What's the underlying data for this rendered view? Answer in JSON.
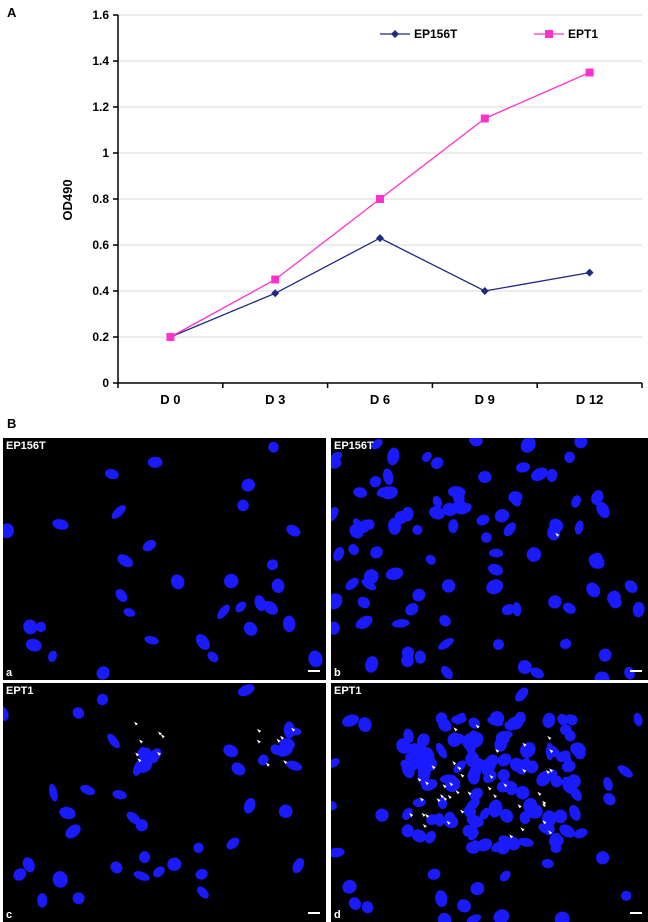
{
  "panel_a_label": "A",
  "panel_b_label": "B",
  "colors": {
    "ep156t": "#1f2a80",
    "ept1": "#ff33cc",
    "nucleus": "#1a1aff",
    "arrow": "#ffffff"
  },
  "chart_data": {
    "type": "line",
    "categories": [
      "D 0",
      "D 3",
      "D 6",
      "D 9",
      "D 12"
    ],
    "series": [
      {
        "name": "EP156T",
        "marker": "diamond",
        "values": [
          0.2,
          0.39,
          0.63,
          0.4,
          0.48
        ]
      },
      {
        "name": "EPT1",
        "marker": "square",
        "values": [
          0.2,
          0.45,
          0.8,
          1.15,
          1.35
        ]
      }
    ],
    "ylabel": "OD490",
    "ylim": [
      0,
      1.6
    ],
    "yticks": [
      "0",
      "0.2",
      "0.4",
      "0.6",
      "0.8",
      "1",
      "1.2",
      "1.4",
      "1.6"
    ],
    "grid": true,
    "legend": "top-right"
  },
  "micrographs": [
    {
      "title": "EP156T",
      "letter": "a",
      "stain": "nuclei (blue)"
    },
    {
      "title": "EP156T",
      "letter": "b",
      "stain": "nuclei (blue)"
    },
    {
      "title": "EPT1",
      "letter": "c",
      "stain": "nuclei (blue)"
    },
    {
      "title": "EPT1",
      "letter": "d",
      "stain": "nuclei (blue)"
    }
  ]
}
